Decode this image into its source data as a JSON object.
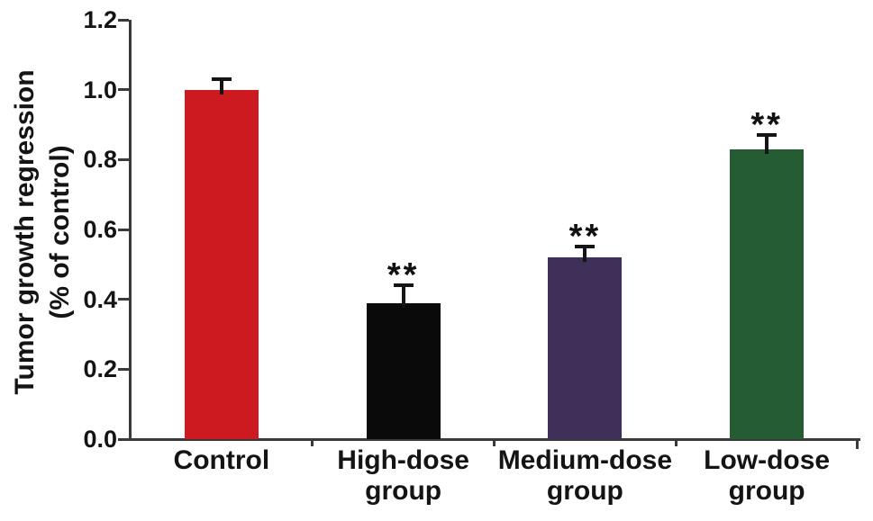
{
  "chart_data": {
    "type": "bar",
    "title": "",
    "ylabel_line1": "Tumor growth regression",
    "ylabel_line2": "(% of control)",
    "xlabel": "",
    "categories": [
      "Control",
      "High-dose\ngroup",
      "Medium-dose\ngroup",
      "Low-dose\ngroup"
    ],
    "values": [
      1.0,
      0.39,
      0.52,
      0.83
    ],
    "errors": [
      0.03,
      0.05,
      0.03,
      0.04
    ],
    "significance": [
      "",
      "**",
      "**",
      "**"
    ],
    "bar_colors": [
      "#cd1a20",
      "#0a0a0a",
      "#3e3059",
      "#265c33"
    ],
    "yticks": [
      0.0,
      0.2,
      0.4,
      0.6,
      0.8,
      1.0,
      1.2
    ],
    "ytick_labels": [
      "0.0",
      "0.2",
      "0.4",
      "0.6",
      "0.8",
      "1.0",
      "1.2"
    ],
    "ylim": [
      0,
      1.2
    ],
    "grid": false,
    "legend": "none",
    "axis_color": "#3a3a3a",
    "text_color": "#141414",
    "error_bar_color": "#151515"
  }
}
